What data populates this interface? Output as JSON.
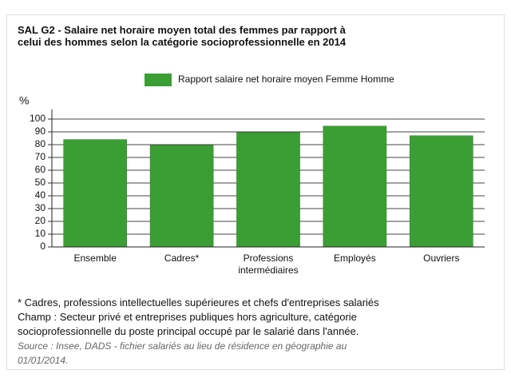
{
  "chart_data": {
    "type": "bar",
    "title": "SAL G2 - Salaire net horaire moyen total des femmes par rapport à celui des hommes selon la catégorie socioprofessionnelle en 2014",
    "y_label": "%",
    "categories": [
      "Ensemble",
      "Cadres*",
      "Professions intermédiaires",
      "Employés",
      "Ouvriers"
    ],
    "series": [
      {
        "name": "Rapport salaire net horaire moyen Femme Homme",
        "color": "#3a9e34",
        "values": [
          84,
          79.5,
          89.5,
          94.5,
          87
        ]
      }
    ],
    "ylim": [
      0,
      100
    ],
    "yticks": [
      0,
      10,
      20,
      30,
      40,
      50,
      60,
      70,
      80,
      90,
      100
    ],
    "grid": true,
    "notes": [
      "* Cadres, professions intellectuelles supérieures et chefs d'entreprises salariés",
      "Champ : Secteur privé et entreprises publiques hors agriculture, catégorie socioprofessionnelle du poste principal occupé par le salarié dans l'année."
    ],
    "source": "Source : Insee, DADS - fichier salariés au lieu de résidence en géographie au 01/01/2014."
  }
}
